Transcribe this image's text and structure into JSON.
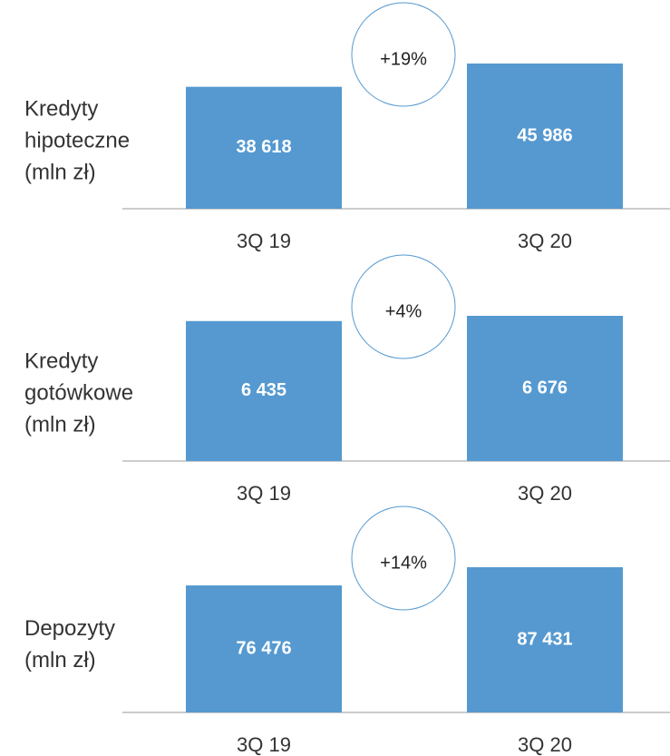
{
  "chart_data": [
    {
      "type": "bar",
      "title": "Kredyty hipoteczne (mln zł)",
      "categories": [
        "3Q 19",
        "3Q 20"
      ],
      "values": [
        38618,
        45986
      ],
      "value_labels": [
        "38 618",
        "45 986"
      ],
      "annotation": "+19%",
      "color": "#5599d0"
    },
    {
      "type": "bar",
      "title": "Kredyty gotówkowe (mln zł)",
      "categories": [
        "3Q 19",
        "3Q 20"
      ],
      "values": [
        6435,
        6676
      ],
      "value_labels": [
        "6 435",
        "6 676"
      ],
      "annotation": "+4%",
      "color": "#5599d0"
    },
    {
      "type": "bar",
      "title": "Depozyty (mln zł)",
      "categories": [
        "3Q 19",
        "3Q 20"
      ],
      "values": [
        76476,
        87431
      ],
      "value_labels": [
        "76 476",
        "87 431"
      ],
      "annotation": "+14%",
      "color": "#5599d0"
    }
  ]
}
